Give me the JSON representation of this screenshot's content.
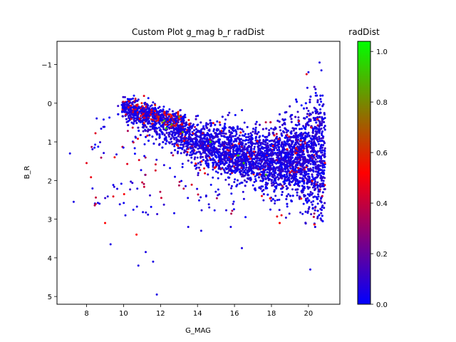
{
  "chart_data": {
    "type": "scatter",
    "title": "Custom Plot g_mag b_r radDist",
    "xlabel": "G_MAG",
    "ylabel": "B_R",
    "xlim": [
      6.4,
      21.7
    ],
    "ylim": [
      5.2,
      -1.6
    ],
    "y_inverted": true,
    "grid": false,
    "xticks": [
      "8",
      "10",
      "12",
      "14",
      "16",
      "18",
      "20"
    ],
    "yticks": [
      "−1",
      "0",
      "1",
      "2",
      "3",
      "4",
      "5"
    ],
    "colorbar": {
      "label": "radDist",
      "range": [
        0.0,
        1.0
      ],
      "ticks": [
        "0.0",
        "0.2",
        "0.4",
        "0.6",
        "0.8",
        "1.0"
      ],
      "colors": [
        "#0000ff",
        "#ff0000",
        "#00ff00"
      ]
    },
    "point_density": {
      "description_note": "dense stellar locus; representative sampled points",
      "main_locus": [
        {
          "g": 10.0,
          "br_center": 0.2,
          "br_spread": 0.2
        },
        {
          "g": 12.0,
          "br_center": 0.6,
          "br_spread": 0.35
        },
        {
          "g": 14.0,
          "br_center": 1.0,
          "br_spread": 0.45
        },
        {
          "g": 16.0,
          "br_center": 1.3,
          "br_spread": 0.55
        },
        {
          "g": 18.0,
          "br_center": 1.5,
          "br_spread": 0.65
        },
        {
          "g": 20.5,
          "br_center": 1.4,
          "br_spread": 1.0
        }
      ]
    },
    "outliers": [
      {
        "x": 7.1,
        "y": 1.3,
        "c": 0.05
      },
      {
        "x": 7.3,
        "y": 2.55,
        "c": 0.05
      },
      {
        "x": 8.7,
        "y": 2.6,
        "c": 0.05
      },
      {
        "x": 9.0,
        "y": 3.1,
        "c": 0.5
      },
      {
        "x": 9.3,
        "y": 3.65,
        "c": 0.05
      },
      {
        "x": 10.8,
        "y": 4.2,
        "c": 0.05
      },
      {
        "x": 11.2,
        "y": 3.85,
        "c": 0.05
      },
      {
        "x": 11.6,
        "y": 4.1,
        "c": 0.05
      },
      {
        "x": 11.8,
        "y": 4.95,
        "c": 0.05
      },
      {
        "x": 13.5,
        "y": 3.2,
        "c": 0.05
      },
      {
        "x": 14.2,
        "y": 3.3,
        "c": 0.05
      },
      {
        "x": 16.4,
        "y": 3.75,
        "c": 0.05
      },
      {
        "x": 15.8,
        "y": 3.2,
        "c": 0.05
      },
      {
        "x": 20.1,
        "y": 4.3,
        "c": 0.05
      },
      {
        "x": 20.6,
        "y": -1.05,
        "c": 0.05
      },
      {
        "x": 20.7,
        "y": -0.85,
        "c": 0.05
      },
      {
        "x": 20.0,
        "y": -0.8,
        "c": 0.05
      },
      {
        "x": 19.9,
        "y": -0.75,
        "c": 0.45
      },
      {
        "x": 10.7,
        "y": 3.4,
        "c": 0.5
      },
      {
        "x": 10.1,
        "y": 2.9,
        "c": 0.05
      },
      {
        "x": 8.0,
        "y": 1.55,
        "c": 0.45
      }
    ],
    "highlighted": [
      {
        "x": 12.2,
        "y": 0.45,
        "c": 0.85
      },
      {
        "x": 12.3,
        "y": 0.65,
        "c": 0.9
      },
      {
        "x": 12.6,
        "y": 0.55,
        "c": 0.8
      },
      {
        "x": 13.0,
        "y": 0.35,
        "c": 0.75
      },
      {
        "x": 13.2,
        "y": 0.75,
        "c": 0.8
      },
      {
        "x": 14.7,
        "y": 1.0,
        "c": 0.9
      },
      {
        "x": 16.2,
        "y": 1.35,
        "c": 0.9
      },
      {
        "x": 16.5,
        "y": 1.55,
        "c": 0.85
      },
      {
        "x": 17.7,
        "y": 1.85,
        "c": 0.85
      },
      {
        "x": 11.9,
        "y": 0.35,
        "c": 0.6
      },
      {
        "x": 12.1,
        "y": 0.5,
        "c": 0.7
      }
    ]
  }
}
